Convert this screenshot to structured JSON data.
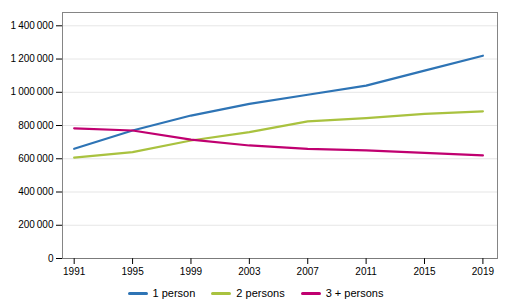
{
  "chart_data": {
    "type": "line",
    "x": [
      1991,
      1995,
      1999,
      2003,
      2007,
      2011,
      2015,
      2019
    ],
    "series": [
      {
        "name": "1 person",
        "color": "#2E74B5",
        "values": [
          660000,
          770000,
          860000,
          930000,
          985000,
          1040000,
          1130000,
          1220000
        ]
      },
      {
        "name": "2 persons",
        "color": "#A9C23F",
        "values": [
          607000,
          640000,
          710000,
          760000,
          825000,
          845000,
          870000,
          885000
        ]
      },
      {
        "name": "3 + persons",
        "color": "#C00070",
        "values": [
          783000,
          770000,
          715000,
          680000,
          660000,
          650000,
          635000,
          620000
        ]
      }
    ],
    "xlim": [
      1990.2,
      2020.0
    ],
    "xticks": [
      1991,
      1995,
      1999,
      2003,
      2007,
      2011,
      2015,
      2019
    ],
    "ylim": [
      0,
      1480000
    ],
    "yticks": [
      0,
      {
        "value": 200000,
        "label": "200 000"
      },
      {
        "value": 400000,
        "label": "400 000"
      },
      {
        "value": 600000,
        "label": "600 000"
      },
      {
        "value": 800000,
        "label": "800 000"
      },
      {
        "value": 1000000,
        "label": "1 000 000"
      },
      {
        "value": 1200000,
        "label": "1 200 000"
      },
      {
        "value": 1400000,
        "label": "1 400 000"
      }
    ],
    "grid": true,
    "legend": "bottom"
  }
}
